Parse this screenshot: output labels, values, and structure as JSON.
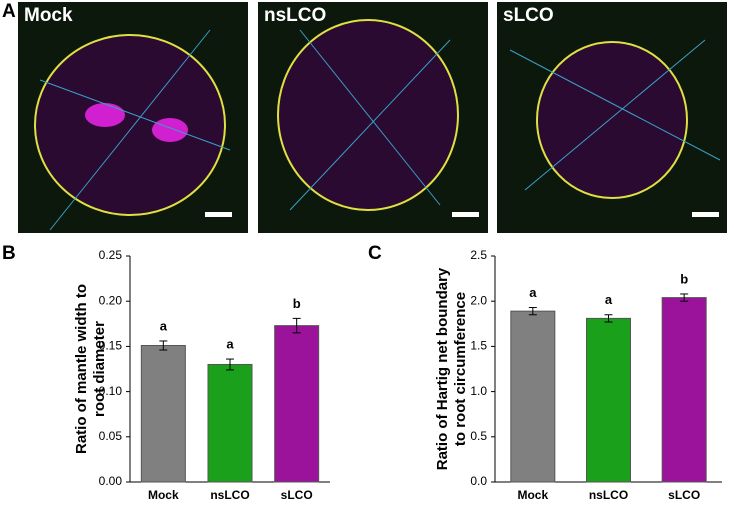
{
  "panel_labels": [
    "A",
    "B",
    "C"
  ],
  "images": [
    {
      "label": "Mock"
    },
    {
      "label": "nsLCO"
    },
    {
      "label": "sLCO"
    }
  ],
  "chart_data": [
    {
      "type": "bar",
      "ylabel": [
        "Ratio of mantle width to",
        "root diameter"
      ],
      "categories": [
        "Mock",
        "nsLCO",
        "sLCO"
      ],
      "values": [
        0.151,
        0.13,
        0.173
      ],
      "errors": [
        0.005,
        0.006,
        0.008
      ],
      "annotations": [
        "a",
        "a",
        "b"
      ],
      "colors": [
        "#808080",
        "#1aa01a",
        "#9b129b"
      ],
      "ylim": [
        0,
        0.25
      ],
      "yticks": [
        {
          "value": 0,
          "label": "0.00"
        },
        {
          "value": 0.05,
          "label": "0.05"
        },
        {
          "value": 0.1,
          "label": "0.10"
        },
        {
          "value": 0.15,
          "label": "0.15"
        },
        {
          "value": 0.2,
          "label": "0.20"
        },
        {
          "value": 0.25,
          "label": "0.25"
        }
      ]
    },
    {
      "type": "bar",
      "ylabel": [
        "Ratio of Hartig net boundary",
        "to root circumference"
      ],
      "categories": [
        "Mock",
        "nsLCO",
        "sLCO"
      ],
      "values": [
        1.89,
        1.81,
        2.04
      ],
      "errors": [
        0.04,
        0.04,
        0.04
      ],
      "annotations": [
        "a",
        "a",
        "b"
      ],
      "colors": [
        "#808080",
        "#1aa01a",
        "#9b129b"
      ],
      "ylim": [
        0,
        2.5
      ],
      "yticks": [
        {
          "value": 0,
          "label": "0.0"
        },
        {
          "value": 0.5,
          "label": "0.5"
        },
        {
          "value": 1,
          "label": "1.0"
        },
        {
          "value": 1.5,
          "label": "1.5"
        },
        {
          "value": 2,
          "label": "2.0"
        },
        {
          "value": 2.5,
          "label": "2.5"
        }
      ]
    }
  ]
}
